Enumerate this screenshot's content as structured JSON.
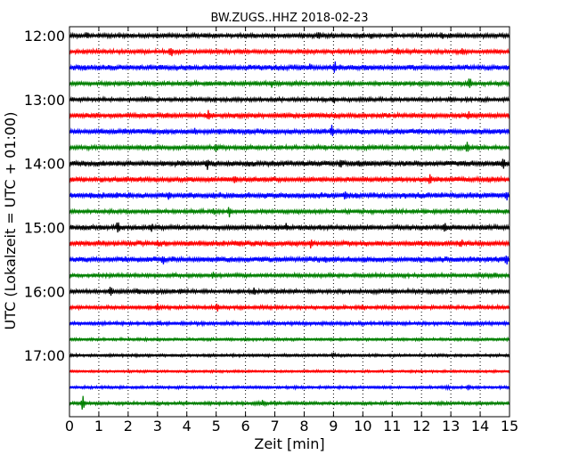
{
  "chart_data": {
    "type": "line",
    "subtype": "seismogram-dayplot",
    "title": "BW.ZUGS..HHZ 2018-02-23",
    "xlabel": "Zeit  [min]",
    "ylabel": "UTC (Lokalzeit = UTC + 01:00)",
    "xlim": [
      0,
      15
    ],
    "x_ticks": [
      "0",
      "1",
      "2",
      "3",
      "4",
      "5",
      "6",
      "7",
      "8",
      "9",
      "10",
      "11",
      "12",
      "13",
      "14",
      "15"
    ],
    "y_ticks": [
      "12:00",
      "13:00",
      "14:00",
      "15:00",
      "16:00",
      "17:00"
    ],
    "grid": {
      "vertical_dotted": true
    },
    "trace_colors": [
      "#000000",
      "#ff0000",
      "#0000ff",
      "#008000"
    ],
    "traces": [
      {
        "start": "12:00",
        "color": "#000000",
        "amplitude": 0.22,
        "spikes": [
          [
            0.6,
            0.3
          ],
          [
            8.5,
            0.35
          ],
          [
            10.3,
            0.25
          ],
          [
            12.7,
            0.4
          ]
        ]
      },
      {
        "start": "12:15",
        "color": "#ff0000",
        "amplitude": 0.22,
        "spikes": [
          [
            3.45,
            0.7
          ],
          [
            11.2,
            0.3
          ],
          [
            13.4,
            0.35
          ]
        ]
      },
      {
        "start": "12:30",
        "color": "#0000ff",
        "amplitude": 0.28,
        "spikes": [
          [
            8.2,
            0.3
          ],
          [
            9.05,
            0.6
          ],
          [
            10.1,
            0.3
          ]
        ]
      },
      {
        "start": "12:45",
        "color": "#008000",
        "amplitude": 0.22,
        "spikes": [
          [
            6.9,
            0.4
          ],
          [
            13.65,
            0.75
          ]
        ]
      },
      {
        "start": "13:00",
        "color": "#000000",
        "amplitude": 0.2,
        "spikes": [
          [
            2.6,
            0.25
          ],
          [
            9.0,
            0.45
          ],
          [
            13.0,
            0.25
          ]
        ]
      },
      {
        "start": "13:15",
        "color": "#ff0000",
        "amplitude": 0.25,
        "spikes": [
          [
            3.3,
            0.3
          ],
          [
            4.75,
            0.6
          ],
          [
            13.6,
            0.35
          ]
        ]
      },
      {
        "start": "13:30",
        "color": "#0000ff",
        "amplitude": 0.28,
        "spikes": [
          [
            4.3,
            0.3
          ],
          [
            8.95,
            0.8
          ]
        ]
      },
      {
        "start": "13:45",
        "color": "#008000",
        "amplitude": 0.22,
        "spikes": [
          [
            5.0,
            0.35
          ],
          [
            13.55,
            0.7
          ]
        ]
      },
      {
        "start": "14:00",
        "color": "#000000",
        "amplitude": 0.28,
        "spikes": [
          [
            4.7,
            0.55
          ],
          [
            9.25,
            0.4
          ],
          [
            9.85,
            0.35
          ],
          [
            14.8,
            0.75
          ]
        ]
      },
      {
        "start": "14:15",
        "color": "#ff0000",
        "amplitude": 0.26,
        "spikes": [
          [
            5.65,
            0.4
          ],
          [
            12.3,
            0.75
          ]
        ]
      },
      {
        "start": "14:30",
        "color": "#0000ff",
        "amplitude": 0.3,
        "spikes": [
          [
            3.4,
            0.4
          ],
          [
            9.4,
            0.6
          ],
          [
            14.9,
            0.6
          ]
        ]
      },
      {
        "start": "14:45",
        "color": "#008000",
        "amplitude": 0.2,
        "spikes": [
          [
            4.9,
            0.35
          ],
          [
            5.45,
            0.6
          ]
        ]
      },
      {
        "start": "15:00",
        "color": "#000000",
        "amplitude": 0.25,
        "spikes": [
          [
            1.65,
            0.7
          ],
          [
            2.8,
            0.35
          ],
          [
            7.4,
            0.4
          ],
          [
            12.8,
            0.7
          ]
        ]
      },
      {
        "start": "15:15",
        "color": "#ff0000",
        "amplitude": 0.26,
        "spikes": [
          [
            3.0,
            0.3
          ],
          [
            8.25,
            0.65
          ],
          [
            13.35,
            0.4
          ]
        ]
      },
      {
        "start": "15:30",
        "color": "#0000ff",
        "amplitude": 0.28,
        "spikes": [
          [
            3.2,
            0.45
          ],
          [
            8.7,
            0.3
          ],
          [
            14.9,
            0.5
          ]
        ]
      },
      {
        "start": "15:45",
        "color": "#008000",
        "amplitude": 0.2,
        "spikes": [
          [
            4.9,
            0.35
          ],
          [
            14.5,
            0.25
          ]
        ]
      },
      {
        "start": "16:00",
        "color": "#000000",
        "amplitude": 0.22,
        "spikes": [
          [
            1.4,
            0.75
          ],
          [
            2.35,
            0.3
          ],
          [
            3.8,
            0.3
          ],
          [
            6.3,
            0.4
          ]
        ]
      },
      {
        "start": "16:15",
        "color": "#ff0000",
        "amplitude": 0.18,
        "spikes": [
          [
            3.0,
            0.35
          ],
          [
            5.05,
            0.5
          ],
          [
            10.0,
            0.25
          ]
        ]
      },
      {
        "start": "16:30",
        "color": "#0000ff",
        "amplitude": 0.18,
        "spikes": [
          [
            3.05,
            0.25
          ]
        ]
      },
      {
        "start": "16:45",
        "color": "#008000",
        "amplitude": 0.14,
        "spikes": []
      },
      {
        "start": "17:00",
        "color": "#000000",
        "amplitude": 0.14,
        "spikes": [
          [
            9.0,
            0.25
          ]
        ]
      },
      {
        "start": "17:15",
        "color": "#ff0000",
        "amplitude": 0.12,
        "spikes": []
      },
      {
        "start": "17:30",
        "color": "#0000ff",
        "amplitude": 0.14,
        "spikes": [
          [
            12.9,
            0.3
          ],
          [
            13.6,
            0.3
          ]
        ]
      },
      {
        "start": "17:45",
        "color": "#008000",
        "amplitude": 0.16,
        "spikes": [
          [
            0.45,
            0.9
          ],
          [
            6.6,
            0.4
          ]
        ]
      }
    ]
  }
}
